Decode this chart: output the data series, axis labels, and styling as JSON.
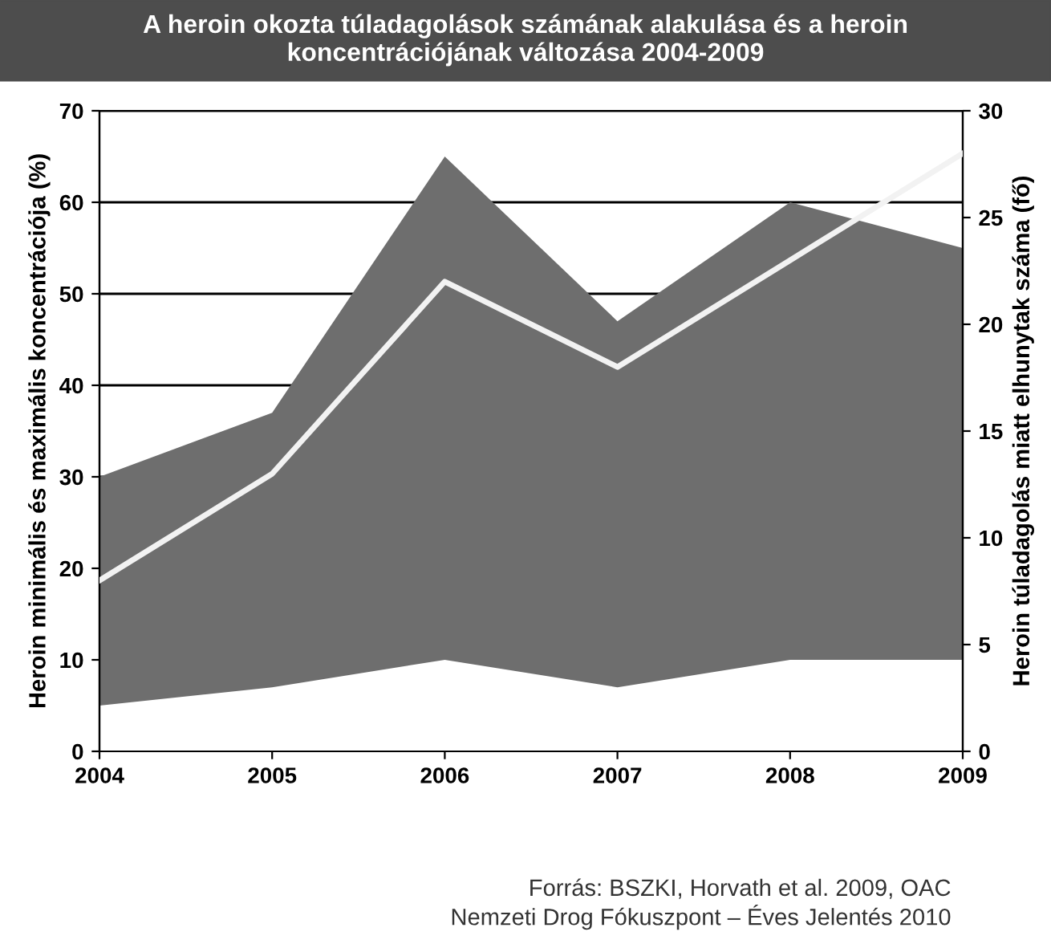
{
  "chart_data": {
    "type": "area",
    "title": "A heroin okozta túladagolások számának alakulása és a heroin\nkoncentrációjának változása 2004-2009",
    "categories": [
      "2004",
      "2005",
      "2006",
      "2007",
      "2008",
      "2009"
    ],
    "ylabel": "Heroin minimális és maximális koncentrációja (%)",
    "y2label": "Heroin túladagolás miatt elhunytak száma (fő)",
    "series": [
      {
        "color": "#6e6e6e",
        "values": [
          30,
          37,
          65,
          47,
          60,
          55
        ]
      },
      {
        "color": "#ffffff",
        "values": [
          5,
          7,
          10,
          7,
          10,
          10
        ]
      },
      {
        "type": "line",
        "axis": "y2",
        "color": "#f2f2f2",
        "values": [
          8,
          13,
          22,
          18,
          23,
          28
        ]
      }
    ],
    "ylim": [
      0,
      70
    ],
    "yticks": [
      0,
      10,
      20,
      30,
      40,
      50,
      60,
      70
    ],
    "y2lim": [
      0,
      30
    ],
    "y2ticks": [
      0,
      5,
      10,
      15,
      20,
      25,
      30
    ],
    "grid": "y",
    "legend": false,
    "annotations": [
      "Forrás: BSZKI, Horvath et al. 2009, OAC\nNemzeti Drog Fókuszpont – Éves Jelentés 2010"
    ]
  }
}
